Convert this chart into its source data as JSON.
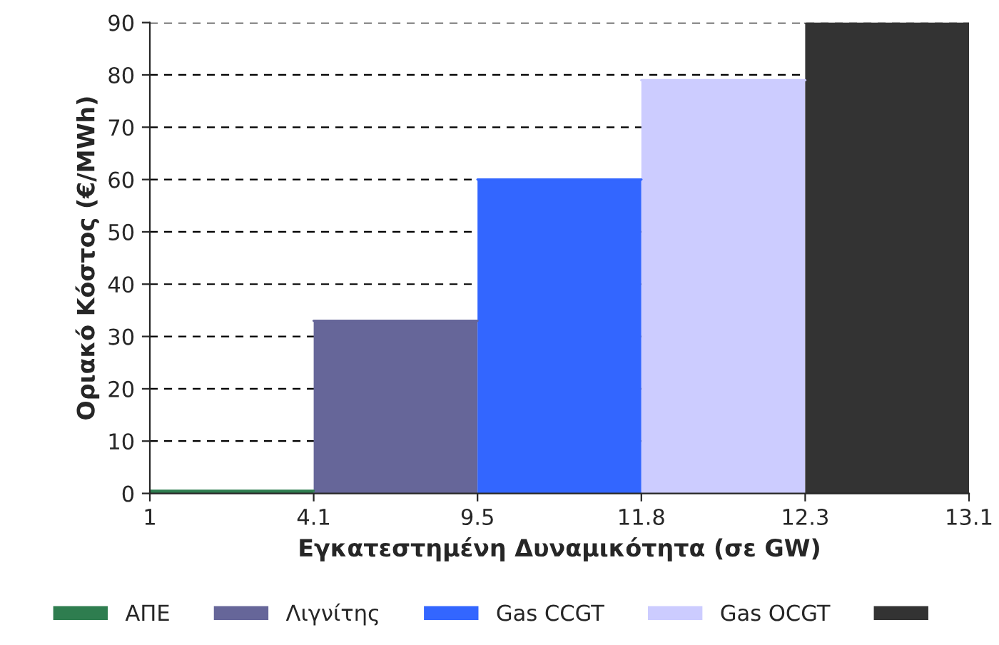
{
  "chart_data": {
    "type": "area",
    "xlabel": "Εγκατεστημένη Δυναμικότητα (σε GW)",
    "ylabel": "Οριακό Κόστος (€/MWh)",
    "categories": [
      "1",
      "4.1",
      "9.5",
      "11.8",
      "12.3",
      "13.1"
    ],
    "ylim": [
      0,
      90
    ],
    "yticks": [
      0,
      10,
      20,
      30,
      40,
      50,
      60,
      70,
      80,
      90
    ],
    "grid": "y",
    "legend": "bottom",
    "series": [
      {
        "name": "ΑΠΕ",
        "color": "#2e7d4f",
        "values": [
          0.5,
          0.5,
          null,
          null,
          null,
          null
        ]
      },
      {
        "name": "Λιγνίτης",
        "color": "#666699",
        "values": [
          null,
          33,
          33,
          null,
          null,
          null
        ]
      },
      {
        "name": "Gas CCGT",
        "color": "#3366ff",
        "values": [
          null,
          null,
          60,
          60,
          null,
          null
        ]
      },
      {
        "name": "Gas OCGT",
        "color": "#ccccff",
        "values": [
          null,
          null,
          null,
          79,
          79,
          null
        ]
      },
      {
        "color": "#333333",
        "values": [
          null,
          null,
          null,
          null,
          90,
          90
        ]
      }
    ]
  }
}
